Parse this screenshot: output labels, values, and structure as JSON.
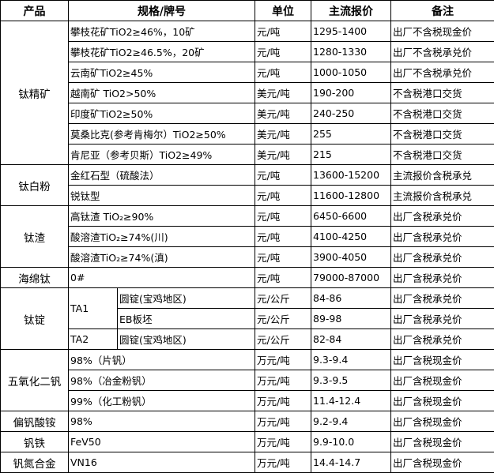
{
  "header": {
    "product": "产品",
    "spec": "规格/牌号",
    "unit": "单位",
    "price": "主流报价",
    "note": "备注"
  },
  "groups": [
    {
      "product": "钛精矿",
      "rows": [
        {
          "spec": "攀枝花矿TiO2≥46%，10矿",
          "unit": "元/吨",
          "price": "1295-1400",
          "note": "出厂不含税现金价"
        },
        {
          "spec": "攀枝花矿TiO2≥46.5%，20矿",
          "unit": "元/吨",
          "price": "1280-1330",
          "note": "出厂不含税承兑价"
        },
        {
          "spec": "云南矿TiO2≥45%",
          "unit": "元/吨",
          "price": "1000-1050",
          "note": "出厂不含税承兑价"
        },
        {
          "spec": "越南矿 TiO2>50%",
          "unit": "美元/吨",
          "price": "190-200",
          "note": "不含税港口交货"
        },
        {
          "spec": "印度矿TiO2≥50%",
          "unit": "美元/吨",
          "price": "240-250",
          "note": "不含税港口交货"
        },
        {
          "spec": "莫桑比克(参考肯梅尔）TiO2≥50%",
          "unit": "美元/吨",
          "price": "255",
          "note": "不含税港口交货"
        },
        {
          "spec": "肯尼亚（参考贝斯）TiO2≥49%",
          "unit": "美元/吨",
          "price": "215",
          "note": "不含税港口交货"
        }
      ]
    },
    {
      "product": "钛白粉",
      "rows": [
        {
          "spec": "金红石型（硫酸法）",
          "unit": "元/吨",
          "price": "13600-15200",
          "note": "主流报价含税承兑"
        },
        {
          "spec": "锐钛型",
          "unit": "元/吨",
          "price": "11600-12800",
          "note": "主流报价含税承兑"
        }
      ]
    },
    {
      "product": "钛渣",
      "rows": [
        {
          "spec": "高钛渣 TiO₂≥90%",
          "unit": "元/吨",
          "price": "6450-6600",
          "note": "出厂含税承兑价"
        },
        {
          "spec": "酸溶渣TiO₂≥74%(川)",
          "unit": "元/吨",
          "price": "4100-4250",
          "note": "出厂含税承兑价"
        },
        {
          "spec": "酸溶渣TiO₂≥74%(滇)",
          "unit": "元/吨",
          "price": "3900-4050",
          "note": "出厂含税承兑价"
        }
      ]
    },
    {
      "product": "海绵钛",
      "rows": [
        {
          "spec": "0#",
          "unit": "元/吨",
          "price": "79000-87000",
          "note": "出厂含税承兑价"
        }
      ]
    },
    {
      "product": "钛锭",
      "rows": [
        {
          "grade": "TA1",
          "grade_span": 2,
          "spec": "圆锭(宝鸡地区)",
          "unit": "元/公斤",
          "price": "84-86",
          "note": "出厂含税承兑价"
        },
        {
          "spec": "EB板坯",
          "unit": "元/公斤",
          "price": "89-98",
          "note": "出厂含税承兑价"
        },
        {
          "grade": "TA2",
          "grade_span": 1,
          "spec": "圆锭(宝鸡地区)",
          "unit": "元/公斤",
          "price": "82-84",
          "note": "出厂含税承兑价"
        }
      ]
    },
    {
      "product": "五氧化二钒",
      "rows": [
        {
          "spec": "98%（片钒）",
          "unit": "万元/吨",
          "price": "9.3-9.4",
          "note": "出厂含税现金价"
        },
        {
          "spec": "98%（冶金粉钒）",
          "unit": "万元/吨",
          "price": "9.3-9.5",
          "note": "出厂含税现金价"
        },
        {
          "spec": "99%（化工粉钒）",
          "unit": "万元/吨",
          "price": "11.4-12.4",
          "note": "出厂含税现金价"
        }
      ]
    },
    {
      "product": "偏钒酸铵",
      "rows": [
        {
          "spec": "98%",
          "unit": "万元/吨",
          "price": "9.2-9.4",
          "note": "出厂含税现金价"
        }
      ]
    },
    {
      "product": "钒铁",
      "rows": [
        {
          "spec": "FeV50",
          "unit": "万元/吨",
          "price": "9.9-10.0",
          "note": "出厂含税现金价"
        }
      ]
    },
    {
      "product": "钒氮合金",
      "rows": [
        {
          "spec": "VN16",
          "unit": "万元/吨",
          "price": "14.4-14.7",
          "note": "出厂含税现金价"
        }
      ]
    }
  ]
}
